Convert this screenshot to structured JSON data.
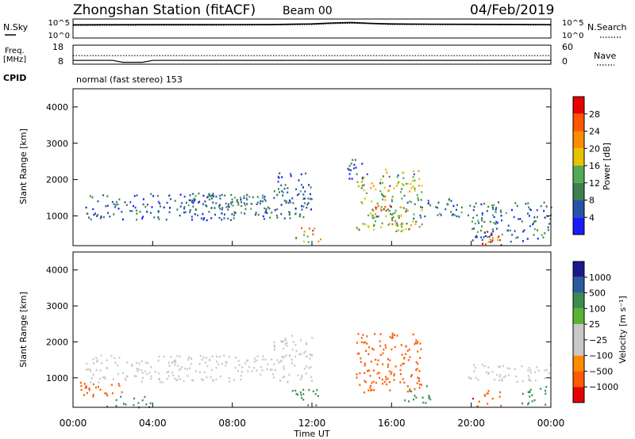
{
  "header": {
    "station": "Zhongshan Station (fitACF)",
    "beam": "Beam 00",
    "date": "04/Feb/2019"
  },
  "strips": {
    "nsky_label": "N.Sky",
    "nsearch_label": "N.Search",
    "nsky_ticks": [
      "10^5",
      "10^0"
    ],
    "nsearch_ticks": [
      "10^5",
      "10^0"
    ],
    "freq_label": "Freq.",
    "freq_unit": "[MHz]",
    "freq_ticks": [
      "18",
      "8"
    ],
    "nave_label": "Nave",
    "nave_ticks": [
      "60",
      "0"
    ],
    "cpid_label": "CPID",
    "cpid_text": "normal (fast stereo) 153"
  },
  "colors": {
    "power": [
      "#1a1aff",
      "#2255aa",
      "#3f7f4f",
      "#55aa55",
      "#e6c300",
      "#ff8c00",
      "#ff5500",
      "#e60000"
    ],
    "velocity": [
      "#e60000",
      "#ff5a00",
      "#ff8c00",
      "#c8c8c8",
      "#c8c8c8",
      "#5ab432",
      "#3c8c50",
      "#2c5aa0",
      "#1a1a8c"
    ],
    "velocity_middle": "#c8c8c8"
  },
  "chart_data": [
    {
      "type": "line",
      "title": "N.Sky / N.Search",
      "x": [
        0,
        2,
        4,
        6,
        8,
        10,
        12,
        13,
        14,
        15,
        16,
        18,
        20,
        22,
        24
      ],
      "series": [
        {
          "name": "N.Sky",
          "values": [
            3000,
            3200,
            3300,
            3300,
            3400,
            3600,
            5000,
            9000,
            12000,
            7000,
            5000,
            4500,
            4000,
            3800,
            3500
          ]
        },
        {
          "name": "N.Search",
          "values": [
            2000,
            2200,
            2300,
            2300,
            2400,
            2600,
            3500,
            6000,
            8000,
            5000,
            3500,
            3200,
            3000,
            2800,
            2500
          ]
        }
      ],
      "xlim": [
        0,
        24
      ],
      "ylim_labels": [
        "10^0",
        "10^5"
      ]
    },
    {
      "type": "line",
      "title": "Freq. / Nave",
      "x": [
        0,
        2,
        2.5,
        3,
        3.5,
        4,
        6,
        10,
        14,
        16,
        20,
        24
      ],
      "series": [
        {
          "name": "Freq.",
          "values": [
            10,
            10,
            9,
            9,
            9,
            10,
            10,
            10,
            10,
            10,
            10,
            10
          ]
        },
        {
          "name": "Nave",
          "values": [
            27,
            27,
            27,
            27,
            27,
            27,
            27,
            27,
            27,
            27,
            27,
            27
          ]
        }
      ],
      "freq_range": [
        8,
        18
      ],
      "nave_range": [
        0,
        60
      ]
    },
    {
      "type": "heatmap",
      "quantity": "Power",
      "ylabel": "Slant Range [km]",
      "colorbar_label": "Power [dB]",
      "colorbar_ticks": [
        4,
        8,
        12,
        16,
        20,
        24,
        28
      ],
      "clim": [
        0,
        30
      ],
      "xlim": [
        0,
        24
      ],
      "ylim": [
        180,
        4500
      ],
      "yticks": [
        1000,
        2000,
        3000,
        4000
      ],
      "regions": [
        {
          "t0": 0.6,
          "t1": 12.0,
          "r0": 900,
          "r1": 1650,
          "value": 7
        },
        {
          "t0": 5.5,
          "t1": 9.5,
          "r0": 1200,
          "r1": 1600,
          "value": 10
        },
        {
          "t0": 10.0,
          "t1": 12.0,
          "r0": 1600,
          "r1": 2200,
          "value": 8
        },
        {
          "t0": 11.0,
          "t1": 12.5,
          "r0": 300,
          "r1": 700,
          "value": 18
        },
        {
          "t0": 13.7,
          "t1": 14.5,
          "r0": 2000,
          "r1": 2600,
          "value": 6
        },
        {
          "t0": 14.2,
          "t1": 17.5,
          "r0": 600,
          "r1": 2300,
          "value": 14
        },
        {
          "t0": 15.0,
          "t1": 16.5,
          "r0": 700,
          "r1": 1300,
          "value": 22
        },
        {
          "t0": 17.5,
          "t1": 19.5,
          "r0": 1000,
          "r1": 1500,
          "value": 9
        },
        {
          "t0": 19.8,
          "t1": 24.0,
          "r0": 300,
          "r1": 1400,
          "value": 8
        },
        {
          "t0": 20.0,
          "t1": 21.5,
          "r0": 200,
          "r1": 600,
          "value": 22
        }
      ]
    },
    {
      "type": "heatmap",
      "quantity": "Velocity",
      "ylabel": "Slant Range [km]",
      "xlabel": "Time UT",
      "colorbar_label": "Velocity [m s⁻¹]",
      "colorbar_ticks": [
        "1000",
        "500",
        "100",
        "25",
        "−25",
        "−100",
        "−500",
        "−1000"
      ],
      "xticks": [
        "00:00",
        "04:00",
        "08:00",
        "12:00",
        "16:00",
        "20:00",
        "00:00"
      ],
      "xlim": [
        0,
        24
      ],
      "ylim": [
        180,
        4500
      ],
      "yticks": [
        1000,
        2000,
        3000,
        4000
      ],
      "regions": [
        {
          "t0": 0.6,
          "t1": 12.0,
          "r0": 900,
          "r1": 1650,
          "value": 0
        },
        {
          "t0": 10.0,
          "t1": 12.0,
          "r0": 1600,
          "r1": 2200,
          "value": 0
        },
        {
          "t0": 0.2,
          "t1": 2.5,
          "r0": 500,
          "r1": 900,
          "value": -300
        },
        {
          "t0": 1.5,
          "t1": 4.0,
          "r0": 200,
          "r1": 500,
          "value": 150
        },
        {
          "t0": 11.0,
          "t1": 12.5,
          "r0": 200,
          "r1": 700,
          "value": 200
        },
        {
          "t0": 14.2,
          "t1": 17.5,
          "r0": 600,
          "r1": 2300,
          "value": -300
        },
        {
          "t0": 16.5,
          "t1": 18.0,
          "r0": 300,
          "r1": 800,
          "value": 200
        },
        {
          "t0": 19.8,
          "t1": 24.0,
          "r0": 900,
          "r1": 1400,
          "value": 0
        },
        {
          "t0": 20.0,
          "t1": 21.5,
          "r0": 200,
          "r1": 700,
          "value": -400
        },
        {
          "t0": 22.5,
          "t1": 24.0,
          "r0": 200,
          "r1": 800,
          "value": 200
        }
      ]
    }
  ]
}
